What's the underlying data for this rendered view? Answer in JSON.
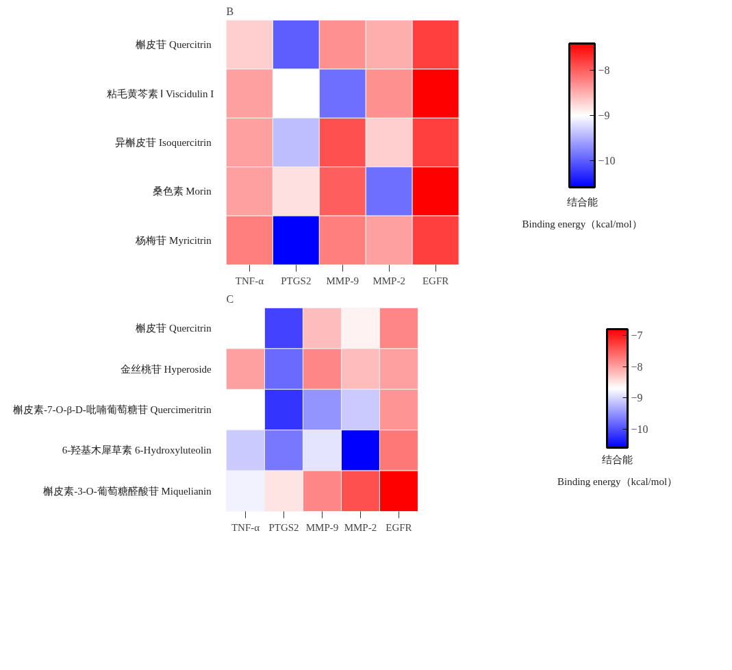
{
  "chart_data": [
    {
      "type": "heatmap",
      "title": "B",
      "categories": [
        "TNF-α",
        "PTGS2",
        "MMP-9",
        "MMP-2",
        "EGFR"
      ],
      "y_categories": [
        "槲皮苷  Quercitrin",
        "粘毛黄芩素 Ⅰ Viscidulin I",
        "异槲皮苷  Isoquercitrin",
        "桑色素  Morin",
        "杨梅苷  Myricitrin"
      ],
      "cells": [
        [
          -8.7,
          -10.0,
          -8.3,
          -8.5,
          -7.8
        ],
        [
          -8.4,
          -9.0,
          -9.9,
          -8.3,
          -7.4
        ],
        [
          -8.4,
          -9.4,
          -7.9,
          -8.7,
          -7.8
        ],
        [
          -8.4,
          -8.8,
          -8.0,
          -9.9,
          -7.4
        ],
        [
          -8.2,
          -10.6,
          -8.2,
          -8.4,
          -7.8
        ]
      ],
      "clim": [
        -10.6,
        -7.4
      ],
      "cticks": [
        -10,
        -9,
        -8
      ],
      "clabel": "结合能\n\nBinding energy（kcal/mol）"
    },
    {
      "type": "heatmap",
      "title": "C",
      "categories": [
        "TNF-α",
        "PTGS2",
        "MMP-9",
        "MMP-2",
        "EGFR"
      ],
      "y_categories": [
        "槲皮苷  Quercitrin",
        "金丝桃苷  Hyperoside",
        "槲皮素-7-O-β-D-吡喃葡萄糖苷  Quercimeritrin",
        "6-羟基木犀草素  6-Hydroxyluteolin",
        "槲皮素-3-O-葡萄糖醛酸苷  Miquelianin"
      ],
      "cells": [
        [
          null,
          -10.1,
          -8.2,
          -8.6,
          -7.8
        ],
        [
          -8.0,
          -9.8,
          -7.8,
          -8.2,
          -8.0
        ],
        [
          null,
          -10.2,
          -9.5,
          -9.1,
          -7.9
        ],
        [
          -9.1,
          -9.7,
          -8.9,
          -10.6,
          -7.7
        ],
        [
          -8.8,
          -8.5,
          -7.8,
          -7.4,
          -6.8
        ]
      ],
      "clim": [
        -10.6,
        -6.8
      ],
      "cticks": [
        -10,
        -9,
        -8,
        -7
      ],
      "clabel": "结合能\n\nBinding energy（kcal/mol）"
    }
  ]
}
